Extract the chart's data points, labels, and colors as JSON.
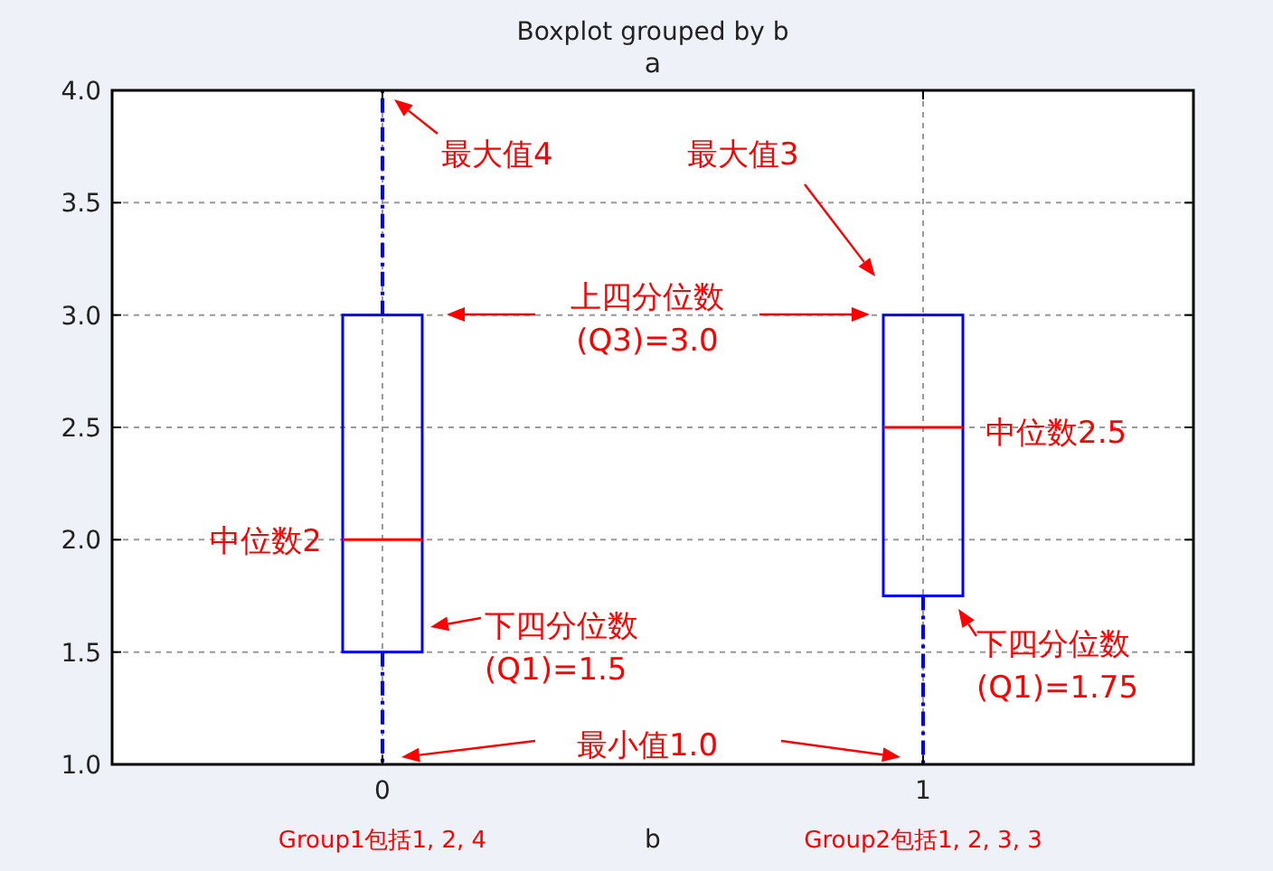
{
  "chart_data": {
    "type": "box",
    "title": "Boxplot grouped by b",
    "subtitle": "a",
    "xlabel": "b",
    "categories": [
      "0",
      "1"
    ],
    "series": [
      {
        "color": "#0000ff",
        "boxes": [
          {
            "low": 1.0,
            "q1": 1.5,
            "median": 2.0,
            "q3": 3.0,
            "high": 4.0
          },
          {
            "low": 1.0,
            "q1": 1.75,
            "median": 2.5,
            "q3": 3.0,
            "high": 3.0
          }
        ]
      }
    ],
    "ylim": [
      1.0,
      4.0
    ],
    "yticks": [
      {
        "value": 1.0,
        "label": "1.0"
      },
      {
        "value": 1.5,
        "label": "1.5"
      },
      {
        "value": 2.0,
        "label": "2.0"
      },
      {
        "value": 2.5,
        "label": "2.5"
      },
      {
        "value": 3.0,
        "label": "3.0"
      },
      {
        "value": 3.5,
        "label": "3.5"
      },
      {
        "value": 4.0,
        "label": "4.0"
      }
    ],
    "grid": true,
    "annotations": [
      "最大值4",
      "最大值3",
      "上四分位数\n(Q3)=3.0",
      "中位数2",
      "中位数2.5",
      "下四分位数\n(Q1)=1.5",
      "下四分位数\n(Q1)=1.75",
      "最小值1.0",
      "Group1包括1, 2, 4",
      "Group2包括1, 2, 3, 3"
    ]
  }
}
